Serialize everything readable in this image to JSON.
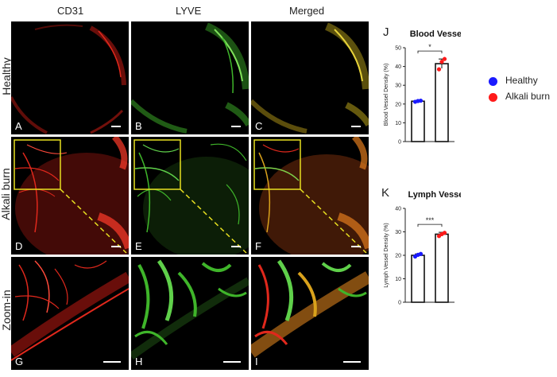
{
  "columns": [
    "CD31",
    "LYVE",
    "Merged"
  ],
  "rows": [
    "Healthy",
    "Alkali burn",
    "Zoom-in"
  ],
  "panel_letters": [
    "A",
    "B",
    "C",
    "D",
    "E",
    "F",
    "G",
    "H",
    "I"
  ],
  "colors": {
    "cd31": "#e0281c",
    "lyve": "#3fb52a",
    "merged": "#d9a21c",
    "box": "#e8e020",
    "healthy": "#1a1aff",
    "alkali": "#ff1a1a"
  },
  "legend": {
    "items": [
      {
        "label": "Healthy",
        "color": "#1a1aff"
      },
      {
        "label": "Alkali burn",
        "color": "#ff1a1a"
      }
    ]
  },
  "chart_data": [
    {
      "type": "bar",
      "panel": "J",
      "title": "Blood Vessels",
      "ylabel": "Blood Vessel Density (%)",
      "ylim": [
        0,
        50
      ],
      "yticks": [
        0,
        10,
        20,
        30,
        40,
        50
      ],
      "categories": [
        "Healthy",
        "Alkali burn"
      ],
      "values": [
        21.5,
        41.5
      ],
      "errors": [
        0.4,
        2.5
      ],
      "points": [
        [
          21.2,
          21.6,
          21.8
        ],
        [
          38.5,
          42.5,
          44.0
        ]
      ],
      "significance": "*"
    },
    {
      "type": "bar",
      "panel": "K",
      "title": "Lymph Vessels",
      "ylabel": "Lymph Vessel Density (%)",
      "ylim": [
        0,
        40
      ],
      "yticks": [
        0,
        10,
        20,
        30,
        40
      ],
      "categories": [
        "Healthy",
        "Alkali burn"
      ],
      "values": [
        20.0,
        29.0
      ],
      "errors": [
        0.6,
        0.8
      ],
      "points": [
        [
          19.5,
          20.2,
          20.6
        ],
        [
          28.2,
          29.0,
          29.6
        ]
      ],
      "significance": "***"
    }
  ]
}
